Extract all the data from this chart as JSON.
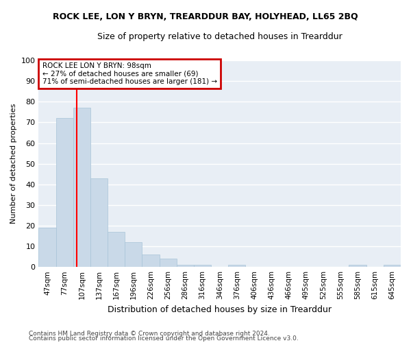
{
  "title": "ROCK LEE, LON Y BRYN, TREARDDUR BAY, HOLYHEAD, LL65 2BQ",
  "subtitle": "Size of property relative to detached houses in Trearddur",
  "xlabel": "Distribution of detached houses by size in Trearddur",
  "ylabel": "Number of detached properties",
  "bin_labels": [
    "47sqm",
    "77sqm",
    "107sqm",
    "137sqm",
    "167sqm",
    "196sqm",
    "226sqm",
    "256sqm",
    "286sqm",
    "316sqm",
    "346sqm",
    "376sqm",
    "406sqm",
    "436sqm",
    "466sqm",
    "495sqm",
    "525sqm",
    "555sqm",
    "585sqm",
    "615sqm",
    "645sqm"
  ],
  "bar_values": [
    19,
    72,
    77,
    43,
    17,
    12,
    6,
    4,
    1,
    1,
    0,
    1,
    0,
    0,
    0,
    0,
    0,
    0,
    1,
    0,
    1
  ],
  "bar_color": "#c9d9e8",
  "bar_edge_color": "#a8c4d8",
  "background_color": "#e8eef5",
  "grid_color": "#ffffff",
  "red_line_x": 1.7,
  "annotation_line1": "ROCK LEE LON Y BRYN: 98sqm",
  "annotation_line2": "← 27% of detached houses are smaller (69)",
  "annotation_line3": "71% of semi-detached houses are larger (181) →",
  "annotation_box_color": "#cc0000",
  "ylim": [
    0,
    100
  ],
  "yticks": [
    0,
    10,
    20,
    30,
    40,
    50,
    60,
    70,
    80,
    90,
    100
  ],
  "footnote1": "Contains HM Land Registry data © Crown copyright and database right 2024.",
  "footnote2": "Contains public sector information licensed under the Open Government Licence v3.0.",
  "fig_bg": "#ffffff"
}
